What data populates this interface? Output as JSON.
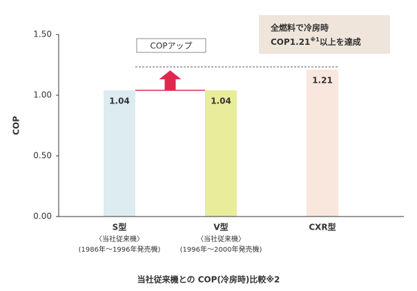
{
  "chart_data": {
    "type": "bar",
    "y_label": "COP",
    "x_label": "当社従来機との COP(冷房時)比較※2",
    "categories": [
      "S型",
      "V型",
      "CXR型"
    ],
    "category_notes": [
      [
        "〈当社従来機〉",
        "(1986年～1996年発売機)"
      ],
      [
        "〈当社従来機〉",
        "(1996年～2000年発売機)"
      ],
      []
    ],
    "values": [
      1.04,
      1.04,
      1.21
    ],
    "colors": [
      "#dcecf1",
      "#e9ec9b",
      "#f9e6dc"
    ],
    "ylim": [
      0,
      1.5
    ],
    "yticks": [
      {
        "value": 0,
        "label": "0.00"
      },
      {
        "value": 0.5,
        "label": "0.50"
      },
      {
        "value": 1,
        "label": "1.00"
      },
      {
        "value": 1.5,
        "label": "1.50"
      }
    ],
    "annotation": "COPアップ",
    "arrow_color": "#e0284f",
    "callout_line1": "全燃料で冷房時",
    "callout_line2": [
      "COP1.21",
      "※1",
      "以上を達成"
    ]
  }
}
